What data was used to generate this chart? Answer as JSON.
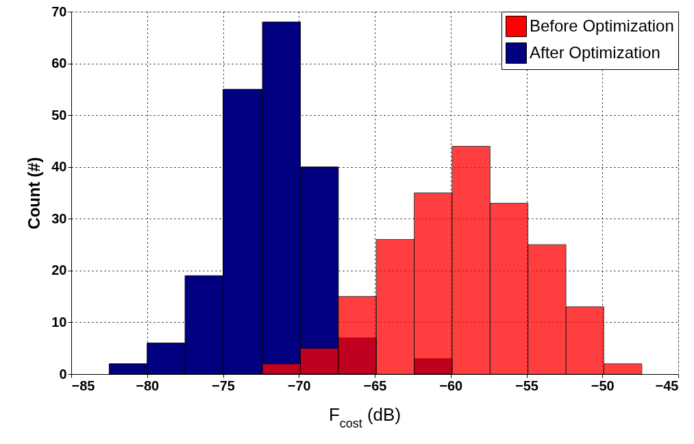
{
  "chart_data": {
    "type": "histogram",
    "xlabel": "F$_{cost}$ (dB)",
    "ylabel": "Count (#)",
    "bins": [
      -82.5,
      -80.0,
      -77.5,
      -75.0,
      -72.4,
      -69.9,
      -67.4,
      -64.9,
      -62.4,
      -59.9,
      -57.4,
      -54.9,
      -52.4,
      -49.9,
      -47.4
    ],
    "series": [
      {
        "name": "Before Optimization",
        "color": "#ff0000",
        "values": [
          null,
          null,
          null,
          null,
          2,
          5,
          15,
          26,
          35,
          44,
          33,
          25,
          13,
          2
        ]
      },
      {
        "name": "After Optimization",
        "color": "#000080",
        "values": [
          2,
          6,
          19,
          55,
          68,
          40,
          7,
          null,
          3,
          null,
          null,
          null,
          null,
          null
        ]
      }
    ],
    "xlim": [
      -85,
      -45
    ],
    "xticks": [
      -85,
      -80,
      -75,
      -70,
      -65,
      -60,
      -55,
      -50,
      -45
    ],
    "ylim": [
      0,
      70
    ],
    "yticks": [
      0,
      10,
      20,
      30,
      40,
      50,
      60,
      70
    ],
    "grid": true,
    "legend": "top right"
  }
}
